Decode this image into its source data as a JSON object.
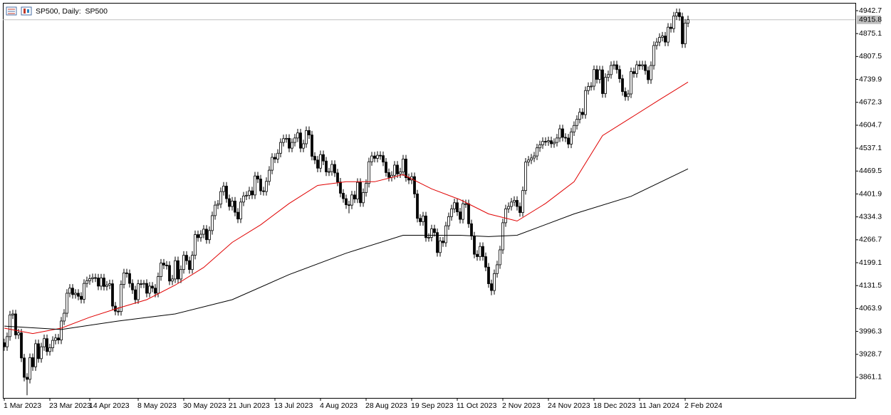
{
  "chart_data": {
    "type": "candlestick",
    "title": "SP500, Daily:  SP500",
    "open": [
      3963,
      3951,
      3981,
      4045,
      4048,
      3986,
      3992,
      3918,
      3861,
      3855,
      3919,
      3892,
      3960,
      3916,
      3951,
      3975,
      3937,
      3948,
      3970,
      3977,
      3971,
      4027,
      4050,
      4109,
      4124,
      4105,
      4109,
      4100,
      4091,
      4138,
      4146,
      4152,
      4155,
      4154,
      4130,
      4154,
      4129,
      4133,
      4137,
      4071,
      4056,
      4055,
      4135,
      4169,
      4167,
      4138,
      4119,
      4090,
      4137,
      4136,
      4138,
      4109,
      4130,
      4124,
      4109,
      4158,
      4198,
      4192,
      4191,
      4145,
      4151,
      4205,
      4151,
      4179,
      4221,
      4205,
      4179,
      4221,
      4282,
      4273,
      4283,
      4298,
      4267,
      4294,
      4338,
      4369,
      4372,
      4409,
      4425,
      4388,
      4365,
      4381,
      4348,
      4328,
      4378,
      4396,
      4398,
      4411,
      4399,
      4455,
      4446,
      4411,
      4409,
      4439,
      4472,
      4510,
      4505,
      4522,
      4554,
      4565,
      4566,
      4537,
      4554,
      4567,
      4582,
      4537,
      4550,
      4589,
      4576,
      4513,
      4502,
      4478,
      4518,
      4499,
      4467,
      4468,
      4489,
      4464,
      4437,
      4404,
      4388,
      4370,
      4369,
      4399,
      4387,
      4436,
      4376,
      4406,
      4433,
      4497,
      4514,
      4507,
      4516,
      4515,
      4496,
      4465,
      4451,
      4457,
      4487,
      4461,
      4467,
      4505,
      4450,
      4443,
      4453,
      4402,
      4330,
      4320,
      4337,
      4273,
      4274,
      4299,
      4288,
      4229,
      4263,
      4258,
      4308,
      4335,
      4358,
      4376,
      4349,
      4327,
      4373,
      4373,
      4314,
      4278,
      4224,
      4217,
      4247,
      4217,
      4186,
      4137,
      4117,
      4167,
      4193,
      4237,
      4317,
      4358,
      4365,
      4378,
      4383,
      4365,
      4347,
      4412,
      4496,
      4502,
      4508,
      4514,
      4538,
      4547,
      4557,
      4556,
      4559,
      4550,
      4554,
      4567,
      4594,
      4569,
      4567,
      4549,
      4585,
      4604,
      4622,
      4643,
      4636,
      4707,
      4719,
      4720,
      4769,
      4740,
      4768,
      4698,
      4746,
      4754,
      4781,
      4783,
      4769,
      4742,
      4704,
      4689,
      4697,
      4763,
      4757,
      4783,
      4780,
      4783,
      4766,
      4739,
      4781,
      4840,
      4850,
      4864,
      4868,
      4850,
      4894,
      4890,
      4927,
      4937,
      4925,
      4845,
      4906
    ],
    "high": [
      3975,
      3993,
      4057,
      4060,
      4060,
      4004,
      4004,
      3930,
      3873,
      3931,
      3931,
      3972,
      3972,
      3963,
      3987,
      3987,
      3960,
      3982,
      3989,
      3989,
      4039,
      4062,
      4121,
      4136,
      4136,
      4121,
      4121,
      4112,
      4150,
      4158,
      4164,
      4167,
      4167,
      4166,
      4166,
      4166,
      4145,
      4149,
      4149,
      4083,
      4068,
      4147,
      4181,
      4181,
      4179,
      4150,
      4131,
      4149,
      4149,
      4148,
      4150,
      4142,
      4142,
      4136,
      4170,
      4210,
      4210,
      4204,
      4203,
      4163,
      4217,
      4217,
      4191,
      4233,
      4233,
      4217,
      4233,
      4294,
      4294,
      4295,
      4310,
      4310,
      4306,
      4350,
      4381,
      4384,
      4421,
      4437,
      4437,
      4400,
      4393,
      4393,
      4360,
      4390,
      4408,
      4410,
      4423,
      4423,
      4467,
      4467,
      4458,
      4423,
      4451,
      4484,
      4522,
      4522,
      4534,
      4566,
      4577,
      4578,
      4578,
      4566,
      4579,
      4594,
      4594,
      4562,
      4601,
      4601,
      4588,
      4525,
      4514,
      4530,
      4530,
      4511,
      4479,
      4501,
      4501,
      4476,
      4449,
      4416,
      4400,
      4382,
      4411,
      4411,
      4448,
      4448,
      4418,
      4445,
      4509,
      4526,
      4526,
      4528,
      4528,
      4527,
      4508,
      4477,
      4469,
      4499,
      4499,
      4479,
      4517,
      4517,
      4462,
      4465,
      4465,
      4414,
      4342,
      4349,
      4349,
      4286,
      4311,
      4311,
      4300,
      4275,
      4275,
      4320,
      4347,
      4370,
      4388,
      4388,
      4361,
      4385,
      4385,
      4385,
      4326,
      4290,
      4236,
      4259,
      4259,
      4229,
      4198,
      4149,
      4179,
      4205,
      4249,
      4329,
      4370,
      4377,
      4390,
      4395,
      4395,
      4377,
      4424,
      4508,
      4514,
      4520,
      4526,
      4550,
      4559,
      4569,
      4569,
      4571,
      4571,
      4566,
      4579,
      4606,
      4606,
      4581,
      4579,
      4597,
      4616,
      4634,
      4655,
      4655,
      4719,
      4731,
      4732,
      4781,
      4781,
      4780,
      4780,
      4758,
      4766,
      4793,
      4795,
      4795,
      4781,
      4754,
      4716,
      4709,
      4775,
      4775,
      4795,
      4795,
      4795,
      4795,
      4778,
      4793,
      4852,
      4862,
      4876,
      4880,
      4880,
      4906,
      4906,
      4939,
      4949,
      4949,
      4937,
      4918,
      4928
    ],
    "low": [
      3939,
      3939,
      3969,
      4033,
      3974,
      3974,
      3906,
      3849,
      3808,
      3843,
      3880,
      3880,
      3904,
      3904,
      3939,
      3925,
      3925,
      3936,
      3958,
      3959,
      3959,
      4015,
      4038,
      4097,
      4093,
      4093,
      4088,
      4079,
      4079,
      4126,
      4134,
      4140,
      4142,
      4118,
      4118,
      4117,
      4117,
      4121,
      4059,
      4044,
      4043,
      4043,
      4123,
      4155,
      4126,
      4107,
      4078,
      4078,
      4124,
      4124,
      4097,
      4097,
      4112,
      4097,
      4097,
      4146,
      4180,
      4179,
      4133,
      4133,
      4139,
      4139,
      4139,
      4167,
      4193,
      4167,
      4167,
      4209,
      4261,
      4261,
      4271,
      4255,
      4255,
      4282,
      4326,
      4357,
      4360,
      4397,
      4376,
      4353,
      4353,
      4336,
      4316,
      4316,
      4366,
      4384,
      4386,
      4387,
      4387,
      4434,
      4399,
      4397,
      4397,
      4427,
      4460,
      4493,
      4493,
      4510,
      4542,
      4553,
      4525,
      4525,
      4542,
      4555,
      4525,
      4525,
      4538,
      4564,
      4501,
      4490,
      4466,
      4466,
      4487,
      4455,
      4455,
      4456,
      4452,
      4425,
      4392,
      4376,
      4358,
      4345,
      4357,
      4375,
      4375,
      4364,
      4364,
      4394,
      4421,
      4485,
      4495,
      4495,
      4503,
      4484,
      4453,
      4439,
      4439,
      4445,
      4449,
      4449,
      4455,
      4438,
      4431,
      4431,
      4390,
      4318,
      4308,
      4308,
      4261,
      4261,
      4262,
      4276,
      4217,
      4217,
      4246,
      4246,
      4296,
      4323,
      4346,
      4337,
      4315,
      4315,
      4361,
      4302,
      4266,
      4212,
      4205,
      4205,
      4205,
      4174,
      4125,
      4103,
      4105,
      4155,
      4181,
      4225,
      4305,
      4346,
      4353,
      4366,
      4353,
      4335,
      4335,
      4400,
      4484,
      4490,
      4496,
      4502,
      4526,
      4535,
      4544,
      4544,
      4538,
      4538,
      4542,
      4555,
      4557,
      4555,
      4537,
      4537,
      4573,
      4592,
      4610,
      4624,
      4624,
      4695,
      4707,
      4708,
      4728,
      4728,
      4686,
      4686,
      4734,
      4742,
      4769,
      4757,
      4730,
      4692,
      4677,
      4677,
      4685,
      4745,
      4745,
      4768,
      4768,
      4754,
      4727,
      4727,
      4769,
      4828,
      4838,
      4852,
      4838,
      4838,
      4878,
      4878,
      4915,
      4913,
      4833,
      4833,
      4894
    ],
    "close": [
      3951,
      3981,
      4045,
      4048,
      3986,
      3992,
      3918,
      3861,
      3855,
      3919,
      3892,
      3960,
      3916,
      3951,
      3975,
      3937,
      3948,
      3970,
      3977,
      3971,
      4027,
      4050,
      4109,
      4124,
      4105,
      4109,
      4100,
      4091,
      4138,
      4146,
      4152,
      4155,
      4154,
      4130,
      4154,
      4129,
      4133,
      4137,
      4071,
      4056,
      4055,
      4135,
      4169,
      4167,
      4138,
      4119,
      4090,
      4137,
      4136,
      4138,
      4109,
      4130,
      4124,
      4109,
      4158,
      4198,
      4192,
      4191,
      4145,
      4151,
      4205,
      4151,
      4179,
      4221,
      4205,
      4179,
      4221,
      4282,
      4273,
      4283,
      4298,
      4267,
      4294,
      4338,
      4369,
      4372,
      4409,
      4425,
      4388,
      4365,
      4381,
      4348,
      4328,
      4378,
      4396,
      4398,
      4411,
      4399,
      4455,
      4446,
      4411,
      4409,
      4439,
      4472,
      4510,
      4505,
      4522,
      4554,
      4565,
      4566,
      4537,
      4554,
      4567,
      4582,
      4537,
      4550,
      4589,
      4576,
      4513,
      4502,
      4478,
      4518,
      4499,
      4467,
      4468,
      4489,
      4464,
      4437,
      4404,
      4388,
      4370,
      4369,
      4399,
      4387,
      4436,
      4376,
      4406,
      4433,
      4497,
      4514,
      4507,
      4516,
      4515,
      4496,
      4465,
      4451,
      4457,
      4487,
      4461,
      4467,
      4505,
      4450,
      4443,
      4453,
      4402,
      4330,
      4320,
      4337,
      4273,
      4274,
      4299,
      4288,
      4229,
      4263,
      4258,
      4308,
      4335,
      4358,
      4376,
      4349,
      4327,
      4373,
      4373,
      4314,
      4278,
      4224,
      4217,
      4247,
      4217,
      4186,
      4137,
      4117,
      4167,
      4193,
      4237,
      4317,
      4358,
      4365,
      4378,
      4383,
      4365,
      4347,
      4412,
      4496,
      4502,
      4508,
      4514,
      4538,
      4547,
      4557,
      4556,
      4559,
      4550,
      4554,
      4567,
      4594,
      4569,
      4567,
      4549,
      4585,
      4604,
      4622,
      4643,
      4636,
      4707,
      4719,
      4720,
      4769,
      4740,
      4768,
      4698,
      4746,
      4754,
      4781,
      4783,
      4769,
      4742,
      4704,
      4689,
      4697,
      4763,
      4757,
      4783,
      4780,
      4783,
      4766,
      4739,
      4781,
      4840,
      4850,
      4864,
      4868,
      4850,
      4894,
      4890,
      4927,
      4937,
      4925,
      4845,
      4906,
      4916
    ],
    "up_color": "#ffffff",
    "down_color": "#000000",
    "outline_color": "#000000",
    "moving_averages": [
      {
        "color": "#e00000",
        "x": [
          0,
          10,
          20,
          30,
          40,
          50,
          60,
          70,
          80,
          90,
          100,
          110,
          120,
          130,
          140,
          150,
          160,
          170,
          180,
          190,
          200,
          210,
          220,
          230,
          240
        ],
        "values": [
          4006,
          3990,
          4006,
          4038,
          4065,
          4090,
          4133,
          4185,
          4259,
          4311,
          4374,
          4427,
          4438,
          4438,
          4459,
          4417,
          4385,
          4343,
          4322,
          4374,
          4438,
          4574,
          4627,
          4680,
          4732
        ]
      },
      {
        "color": "#000000",
        "x": [
          0,
          20,
          40,
          60,
          80,
          100,
          120,
          140,
          160,
          170,
          180,
          200,
          220,
          240
        ],
        "values": [
          4012,
          4002,
          4027,
          4048,
          4090,
          4164,
          4227,
          4280,
          4280,
          4276,
          4280,
          4343,
          4395,
          4476
        ]
      }
    ],
    "last_price": 4915.8,
    "xlim": [
      -0.5,
      298.75
    ],
    "ylim": [
      3800.1,
      4965.8
    ],
    "yticks": [
      4942.7,
      4875.1,
      4807.5,
      4739.9,
      4672.3,
      4604.7,
      4537.1,
      4469.5,
      4401.9,
      4334.3,
      4266.7,
      4199.1,
      4131.5,
      4063.9,
      3996.3,
      3928.7,
      3861.1
    ],
    "xticks": [
      {
        "value": 0,
        "label": "1 Mar 2023"
      },
      {
        "value": 16,
        "label": "23 Mar 2023"
      },
      {
        "value": 30,
        "label": "14 Apr 2023"
      },
      {
        "value": 47,
        "label": "8 May 2023"
      },
      {
        "value": 63,
        "label": "30 May 2023"
      },
      {
        "value": 79,
        "label": "21 Jun 2023"
      },
      {
        "value": 95,
        "label": "13 Jul 2023"
      },
      {
        "value": 111,
        "label": "4 Aug 2023"
      },
      {
        "value": 127,
        "label": "28 Aug 2023"
      },
      {
        "value": 143,
        "label": "19 Sep 2023"
      },
      {
        "value": 159,
        "label": "11 Oct 2023"
      },
      {
        "value": 175,
        "label": "2 Nov 2023"
      },
      {
        "value": 191,
        "label": "24 Nov 2023"
      },
      {
        "value": 207,
        "label": "18 Dec 2023"
      },
      {
        "value": 223,
        "label": "11 Jan 2024"
      },
      {
        "value": 239,
        "label": "2 Feb 2024"
      }
    ]
  }
}
